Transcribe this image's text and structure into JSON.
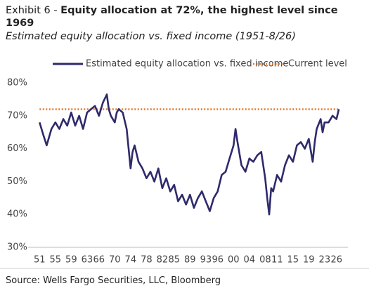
{
  "chart_data": {
    "type": "line",
    "label": "Exhibit 6 -",
    "title": "Equity allocation at 72%, the highest level since 1969",
    "subtitle": "Estimated equity allocation vs. fixed income (1951-8/26)",
    "source": "Source: Wells Fargo Securities, LLC, Bloomberg",
    "x": [
      1951,
      1952,
      1952.8,
      1954,
      1955,
      1956,
      1957,
      1958,
      1959,
      1960,
      1961,
      1962,
      1963,
      1964,
      1965,
      1966,
      1967,
      1968,
      1968.5,
      1969,
      1970,
      1970.5,
      1971,
      1972,
      1973,
      1974,
      1974.5,
      1975,
      1976,
      1977,
      1978,
      1979,
      1980,
      1981,
      1982,
      1983,
      1984,
      1985,
      1986,
      1987,
      1988,
      1989,
      1990,
      1991,
      1992,
      1993,
      1994,
      1995,
      1996,
      1997,
      1998,
      1999,
      2000,
      2000.5,
      2001,
      2002,
      2003,
      2004,
      2005,
      2006,
      2007,
      2008,
      2008.5,
      2009,
      2009.5,
      2010,
      2011,
      2012,
      2013,
      2014,
      2015,
      2016,
      2017,
      2018,
      2019,
      2020,
      2020.5,
      2021,
      2022,
      2022.5,
      2023,
      2024,
      2025,
      2026,
      2026.6
    ],
    "series": [
      {
        "name": "Estimated equity allocation vs. fixed income",
        "color": "#2e2a6b",
        "values": [
          68,
          64,
          61,
          66,
          68,
          66,
          69,
          67,
          71,
          67,
          70,
          66,
          71,
          72,
          73,
          70,
          74,
          76.5,
          72,
          70,
          68,
          71,
          72,
          71,
          66,
          54,
          59,
          61,
          56,
          54,
          51,
          53,
          50,
          54,
          48,
          51,
          47,
          49,
          44,
          46,
          43,
          46,
          42,
          45,
          47,
          44,
          41,
          45,
          47,
          52,
          53,
          57,
          61,
          66,
          62,
          55,
          53,
          57,
          56,
          58,
          59,
          51,
          45,
          40,
          48,
          47,
          52,
          50,
          55,
          58,
          56,
          61,
          62,
          60,
          63,
          56,
          62,
          66,
          69,
          65,
          68,
          68,
          70,
          69,
          72
        ]
      }
    ],
    "current_level": {
      "name": "Current level",
      "value": 72,
      "color": "#e07a2f"
    },
    "xlim": [
      1949,
      2028
    ],
    "xticks": [
      {
        "value": 1951,
        "label": "51"
      },
      {
        "value": 1955,
        "label": "55"
      },
      {
        "value": 1959,
        "label": "59"
      },
      {
        "value": 1963,
        "label": "63"
      },
      {
        "value": 1966,
        "label": "66"
      },
      {
        "value": 1970,
        "label": "70"
      },
      {
        "value": 1974,
        "label": "74"
      },
      {
        "value": 1978,
        "label": "78"
      },
      {
        "value": 1982,
        "label": "82"
      },
      {
        "value": 1985,
        "label": "85"
      },
      {
        "value": 1989,
        "label": "89"
      },
      {
        "value": 1993,
        "label": "93"
      },
      {
        "value": 1996,
        "label": "96"
      },
      {
        "value": 2000,
        "label": "00"
      },
      {
        "value": 2004,
        "label": "04"
      },
      {
        "value": 2008,
        "label": "08"
      },
      {
        "value": 2011,
        "label": "11"
      },
      {
        "value": 2015,
        "label": "15"
      },
      {
        "value": 2019,
        "label": "19"
      },
      {
        "value": 2023,
        "label": "23"
      },
      {
        "value": 2026,
        "label": "26"
      }
    ],
    "ylim": [
      30,
      80
    ],
    "yticks": [
      {
        "value": 30,
        "label": "30%"
      },
      {
        "value": 40,
        "label": "40%"
      },
      {
        "value": 50,
        "label": "50%"
      },
      {
        "value": 60,
        "label": "60%"
      },
      {
        "value": 70,
        "label": "70%"
      },
      {
        "value": 80,
        "label": "80%"
      }
    ]
  }
}
